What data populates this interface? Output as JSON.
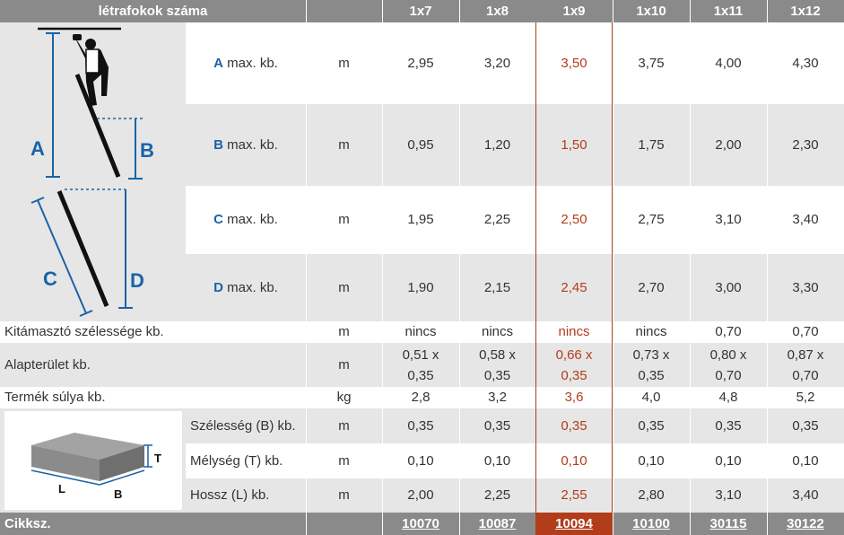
{
  "header": {
    "title": "létrafokok száma",
    "models": [
      "1x7",
      "1x8",
      "1x9",
      "1x10",
      "1x11",
      "1x12"
    ]
  },
  "rows": [
    {
      "letter": "A",
      "label": " max. kb.",
      "unit": "m",
      "values": [
        "2,95",
        "3,20",
        "3,50",
        "3,75",
        "4,00",
        "4,30"
      ]
    },
    {
      "letter": "B",
      "label": " max. kb.",
      "unit": "m",
      "values": [
        "0,95",
        "1,20",
        "1,50",
        "1,75",
        "2,00",
        "2,30"
      ]
    },
    {
      "letter": "C",
      "label": " max. kb.",
      "unit": "m",
      "values": [
        "1,95",
        "2,25",
        "2,50",
        "2,75",
        "3,10",
        "3,40"
      ]
    },
    {
      "letter": "D",
      "label": " max. kb.",
      "unit": "m",
      "values": [
        "1,90",
        "2,15",
        "2,45",
        "2,70",
        "3,00",
        "3,30"
      ]
    },
    {
      "label": "Kitámasztó szélessége kb.",
      "unit": "m",
      "values": [
        "nincs",
        "nincs",
        "nincs",
        "nincs",
        "0,70",
        "0,70"
      ]
    },
    {
      "label": "Alapterület kb.",
      "unit": "m",
      "values": [
        [
          "0,51 x",
          "0,35"
        ],
        [
          "0,58 x",
          "0,35"
        ],
        [
          "0,66 x",
          "0,35"
        ],
        [
          "0,73 x",
          "0,35"
        ],
        [
          "0,80 x",
          "0,70"
        ],
        [
          "0,87 x",
          "0,70"
        ]
      ]
    },
    {
      "label": "Termék súlya kb.",
      "unit": "kg",
      "values": [
        "2,8",
        "3,2",
        "3,6",
        "4,0",
        "4,8",
        "5,2"
      ]
    },
    {
      "label": "Szélesség (B) kb.",
      "unit": "m",
      "values": [
        "0,35",
        "0,35",
        "0,35",
        "0,35",
        "0,35",
        "0,35"
      ]
    },
    {
      "label": "Mélység (T) kb.",
      "unit": "m",
      "values": [
        "0,10",
        "0,10",
        "0,10",
        "0,10",
        "0,10",
        "0,10"
      ]
    },
    {
      "label": "Hossz (L) kb.",
      "unit": "m",
      "values": [
        "2,00",
        "2,25",
        "2,55",
        "2,80",
        "3,10",
        "3,40"
      ]
    }
  ],
  "footer": {
    "label": "Cikksz.",
    "codes": [
      "10070",
      "10087",
      "10094",
      "10100",
      "30115",
      "30122"
    ]
  },
  "diagram": {
    "ladder_labels": [
      "A",
      "B",
      "C",
      "D"
    ],
    "box_labels": [
      "T",
      "L",
      "B"
    ]
  },
  "colors": {
    "header_bg": "#8a8a8a",
    "row_gray": "#e6e6e6",
    "highlight": "#b13d1a",
    "letter_blue": "#1a63a6"
  },
  "highlight_column": 2
}
